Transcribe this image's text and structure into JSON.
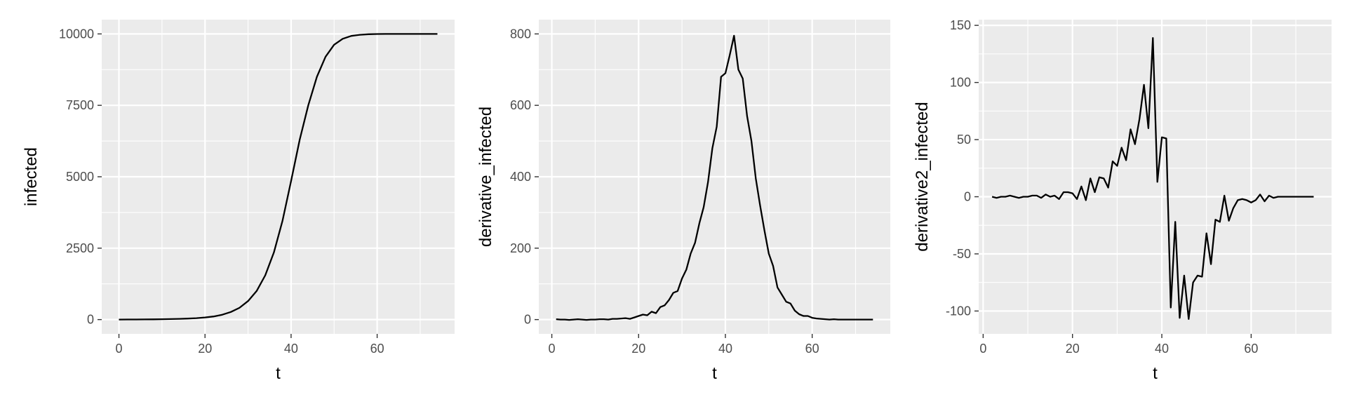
{
  "chart_data": [
    {
      "type": "line",
      "xlabel": "t",
      "ylabel": "infected",
      "xlim": [
        -4,
        78
      ],
      "ylim": [
        -500,
        10500
      ],
      "xticks": [
        0,
        20,
        40,
        60
      ],
      "yticks": [
        0,
        2500,
        5000,
        7500,
        10000
      ],
      "yticklabels": [
        "0",
        "2500",
        "5000",
        "7500",
        "10000"
      ],
      "series": [
        {
          "x": [
            0,
            2,
            4,
            6,
            8,
            10,
            12,
            14,
            16,
            18,
            20,
            22,
            24,
            26,
            28,
            30,
            32,
            34,
            36,
            38,
            40,
            42,
            44,
            46,
            48,
            50,
            52,
            54,
            56,
            58,
            60,
            62,
            64,
            66,
            68,
            70,
            72,
            74
          ],
          "values": [
            2,
            3,
            4,
            6,
            9,
            13,
            18,
            25,
            35,
            50,
            75,
            110,
            170,
            265,
            410,
            650,
            1000,
            1550,
            2350,
            3450,
            4850,
            6300,
            7500,
            8500,
            9200,
            9620,
            9830,
            9930,
            9970,
            9990,
            9996,
            9999,
            10000,
            10000,
            10000,
            10000,
            10000,
            10000
          ]
        }
      ]
    },
    {
      "type": "line",
      "xlabel": "t",
      "ylabel": "derivative_infected",
      "xlim": [
        -3,
        78
      ],
      "ylim": [
        -40,
        840
      ],
      "xticks": [
        0,
        20,
        40,
        60
      ],
      "yticks": [
        0,
        200,
        400,
        600,
        800
      ],
      "yticklabels": [
        "0",
        "200",
        "400",
        "600",
        "800"
      ],
      "series": [
        {
          "x": [
            1,
            2,
            3,
            4,
            5,
            6,
            7,
            8,
            9,
            10,
            11,
            12,
            13,
            14,
            15,
            16,
            17,
            18,
            19,
            20,
            21,
            22,
            23,
            24,
            25,
            26,
            27,
            28,
            29,
            30,
            31,
            32,
            33,
            34,
            35,
            36,
            37,
            38,
            39,
            40,
            41,
            42,
            43,
            44,
            45,
            46,
            47,
            48,
            49,
            50,
            51,
            52,
            53,
            54,
            55,
            56,
            57,
            58,
            59,
            60,
            61,
            62,
            63,
            64,
            65,
            66,
            67,
            68,
            69,
            70,
            71,
            72,
            73,
            74
          ],
          "values": [
            1,
            0,
            0,
            -1,
            0,
            1,
            0,
            -1,
            0,
            0,
            1,
            1,
            0,
            2,
            2,
            3,
            4,
            2,
            6,
            10,
            14,
            12,
            22,
            18,
            35,
            40,
            55,
            75,
            80,
            115,
            140,
            185,
            215,
            270,
            315,
            385,
            480,
            540,
            680,
            690,
            740,
            795,
            700,
            675,
            570,
            500,
            395,
            320,
            250,
            185,
            150,
            90,
            70,
            50,
            45,
            25,
            15,
            10,
            10,
            5,
            3,
            2,
            1,
            0,
            1,
            0,
            0,
            0,
            0,
            0,
            0,
            0,
            0,
            0
          ]
        }
      ]
    },
    {
      "type": "line",
      "xlabel": "t",
      "ylabel": "derivative2_infected",
      "xlim": [
        -1,
        78
      ],
      "ylim": [
        -120,
        155
      ],
      "xticks": [
        0,
        20,
        40,
        60
      ],
      "yticks": [
        -100,
        -50,
        0,
        50,
        100,
        150
      ],
      "yticklabels": [
        "-100",
        "-50",
        "0",
        "50",
        "100",
        "150"
      ],
      "series": [
        {
          "x": [
            2,
            3,
            4,
            5,
            6,
            7,
            8,
            9,
            10,
            11,
            12,
            13,
            14,
            15,
            16,
            17,
            18,
            19,
            20,
            21,
            22,
            23,
            24,
            25,
            26,
            27,
            28,
            29,
            30,
            31,
            32,
            33,
            34,
            35,
            36,
            37,
            38,
            39,
            40,
            41,
            42,
            43,
            44,
            45,
            46,
            47,
            48,
            49,
            50,
            51,
            52,
            53,
            54,
            55,
            56,
            57,
            58,
            59,
            60,
            61,
            62,
            63,
            64,
            65,
            66,
            67,
            68,
            69,
            70,
            71,
            72,
            73,
            74
          ],
          "values": [
            0,
            -1,
            0,
            0,
            1,
            0,
            -1,
            0,
            0,
            1,
            1,
            -1,
            2,
            0,
            1,
            -2,
            4,
            4,
            3,
            -2,
            9,
            -3,
            16,
            4,
            17,
            16,
            8,
            31,
            27,
            43,
            32,
            59,
            46,
            68,
            98,
            60,
            139,
            13,
            52,
            51,
            -97,
            -22,
            -106,
            -69,
            -107,
            -75,
            -69,
            -70,
            -32,
            -59,
            -20,
            -22,
            1,
            -21,
            -10,
            -3,
            -2,
            -3,
            -5,
            -3,
            2,
            -4,
            1,
            -1,
            0,
            0,
            0,
            0,
            0,
            0,
            0,
            0,
            0
          ]
        }
      ]
    }
  ]
}
